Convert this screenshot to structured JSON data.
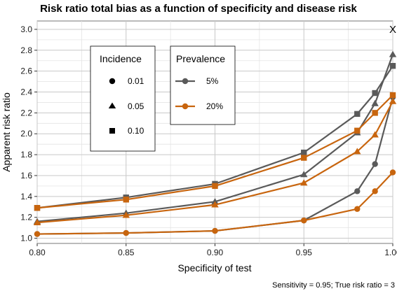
{
  "chart_data": {
    "type": "line",
    "title": "Risk ratio total bias as a function of specificity and disease risk",
    "xlabel": "Specificity of test",
    "ylabel": "Apparent risk ratio",
    "caption": "Sensitivity = 0.95; True risk ratio = 3",
    "xlim": [
      0.8,
      1.0
    ],
    "ylim": [
      0.95,
      3.08
    ],
    "x_ticks": [
      "0.80",
      "0.85",
      "0.90",
      "0.95",
      "1.00"
    ],
    "y_ticks": [
      "1.0",
      "1.2",
      "1.4",
      "1.6",
      "1.8",
      "2.0",
      "2.2",
      "2.4",
      "2.6",
      "2.8",
      "3.0"
    ],
    "grid": true,
    "x": [
      0.8,
      0.85,
      0.9,
      0.95,
      0.98,
      0.99,
      1.0
    ],
    "annotation": {
      "text": "X",
      "x": 1.0,
      "y": 3.0
    },
    "legend_incidence": {
      "title": "Incidence",
      "items": [
        {
          "label": "0.01",
          "marker": "circle"
        },
        {
          "label": "0.05",
          "marker": "triangle"
        },
        {
          "label": "0.10",
          "marker": "square"
        }
      ]
    },
    "legend_prevalence": {
      "title": "Prevalence",
      "items": [
        {
          "label": "5%",
          "color": "#5a5a5a"
        },
        {
          "label": "20%",
          "color": "#c8650e"
        }
      ]
    },
    "series": [
      {
        "incidence": "0.01",
        "prevalence": "5%",
        "marker": "circle",
        "color": "#5a5a5a",
        "values": [
          1.04,
          1.05,
          1.07,
          1.17,
          1.45,
          1.71,
          2.35
        ]
      },
      {
        "incidence": "0.01",
        "prevalence": "20%",
        "marker": "circle",
        "color": "#c8650e",
        "values": [
          1.04,
          1.05,
          1.07,
          1.17,
          1.28,
          1.45,
          1.63
        ]
      },
      {
        "incidence": "0.05",
        "prevalence": "5%",
        "marker": "triangle",
        "color": "#5a5a5a",
        "values": [
          1.16,
          1.24,
          1.35,
          1.61,
          2.01,
          2.29,
          2.76
        ]
      },
      {
        "incidence": "0.05",
        "prevalence": "20%",
        "marker": "triangle",
        "color": "#c8650e",
        "values": [
          1.15,
          1.22,
          1.32,
          1.53,
          1.83,
          1.99,
          2.31
        ]
      },
      {
        "incidence": "0.10",
        "prevalence": "5%",
        "marker": "square",
        "color": "#5a5a5a",
        "values": [
          1.29,
          1.39,
          1.52,
          1.82,
          2.19,
          2.39,
          2.65
        ]
      },
      {
        "incidence": "0.10",
        "prevalence": "20%",
        "marker": "square",
        "color": "#c8650e",
        "values": [
          1.29,
          1.37,
          1.5,
          1.77,
          2.03,
          2.2,
          2.37
        ]
      }
    ]
  }
}
